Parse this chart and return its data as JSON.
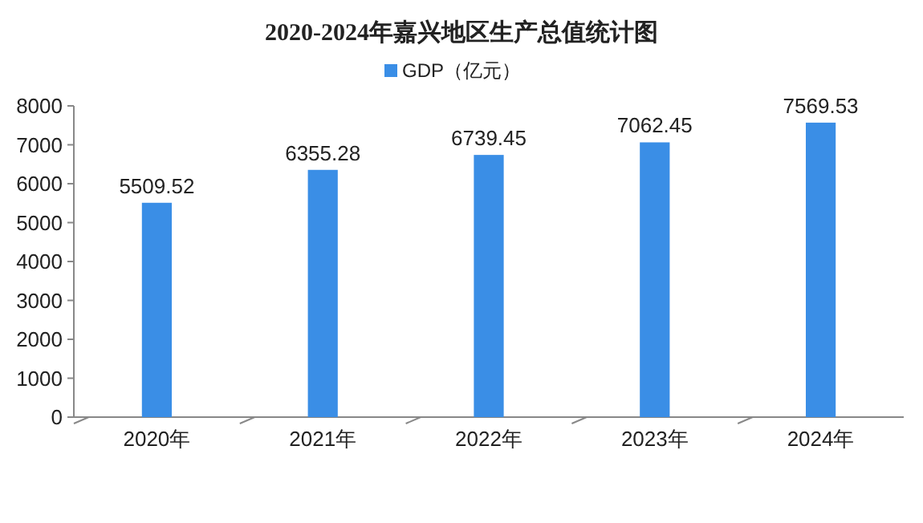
{
  "chart_data": {
    "type": "bar",
    "title": "2020-2024年嘉兴地区生产总值统计图",
    "categories": [
      "2020年",
      "2021年",
      "2022年",
      "2023年",
      "2024年"
    ],
    "series": [
      {
        "name": "GDP（亿元）",
        "color": "#3a8ee6",
        "values": [
          5509.52,
          6355.28,
          6739.45,
          7062.45,
          7569.53
        ]
      }
    ],
    "ylim": [
      0,
      8000
    ],
    "yticks": [
      0,
      1000,
      2000,
      3000,
      4000,
      5000,
      6000,
      7000,
      8000
    ],
    "data_labels": true,
    "legend": "top",
    "grid": false
  }
}
